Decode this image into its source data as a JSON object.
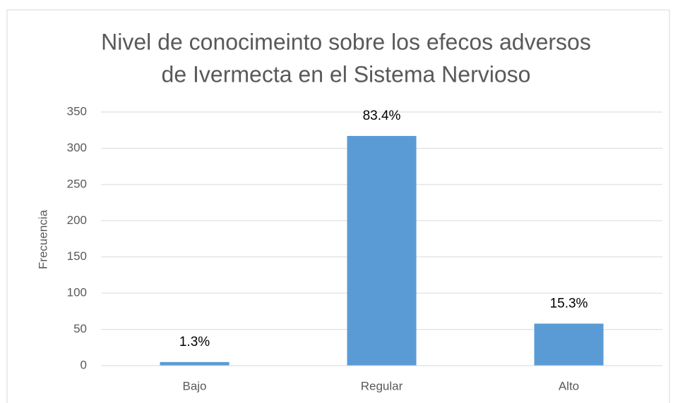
{
  "chart_data": {
    "type": "bar",
    "title": [
      "Nivel de conocimeinto sobre los efecos adversos",
      "de Ivermecta en el Sistema Nervioso"
    ],
    "y_label": "Frecuencia",
    "categories": [
      "Bajo",
      "Regular",
      "Alto"
    ],
    "values": [
      5,
      317,
      58
    ],
    "value_labels": [
      "1.3%",
      "83.4%",
      "15.3%"
    ],
    "color": "#5b9bd5",
    "ylim": [
      0,
      350
    ],
    "yticks": [
      0,
      50,
      100,
      150,
      200,
      250,
      300,
      350
    ],
    "grid": true
  }
}
